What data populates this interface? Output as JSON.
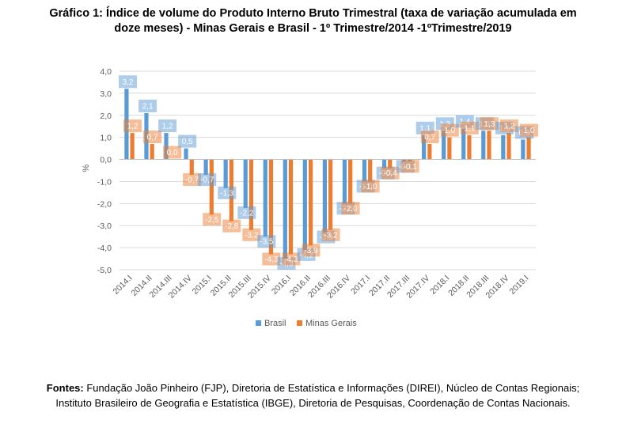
{
  "title": {
    "line1": "Gráfico 1: Índice de volume do Produto Interno Bruto Trimestral (taxa de variação acumulada em",
    "line2": "doze meses) - Minas Gerais e Brasil - 1º Trimestre/2014 -1ºTrimestre/2019"
  },
  "sources": {
    "label": "Fontes:",
    "line1_rest": " Fundação João Pinheiro (FJP), Diretoria de Estatística e Informações (DIREI), Núcleo de Contas Regionais;",
    "line2": "Instituto Brasileiro de Geografia e Estatística (IBGE), Diretoria de Pesquisas, Coordenação de Contas Nacionais."
  },
  "colors": {
    "brasil": "#5b9bd5",
    "minas": "#ed7d31",
    "grid": "#d9d9d9",
    "axis": "#595959"
  },
  "chart_data": {
    "type": "bar",
    "ylabel": "%",
    "ylim": [
      -5.0,
      4.0
    ],
    "yticks": [
      "4,0",
      "3,0",
      "2,0",
      "1,0",
      "0,0",
      "-1,0",
      "-2,0",
      "-3,0",
      "-4,0",
      "-5,0"
    ],
    "grid": true,
    "legend": "bottom",
    "categories": [
      "2014.I",
      "2014.II",
      "2014.III",
      "2014.IV",
      "2015.I",
      "2015.II",
      "2015.III",
      "2015.IV",
      "2016.I",
      "2016.II",
      "2016.III",
      "2016.IV",
      "2017.I",
      "2017.II",
      "2017.III",
      "2017.IV",
      "2018.I",
      "2018.II",
      "2018.III",
      "2018.IV",
      "2019.I"
    ],
    "series": [
      {
        "name": "Brasil",
        "values": [
          3.2,
          2.1,
          1.2,
          0.5,
          -0.7,
          -1.3,
          -2.2,
          -3.5,
          -4.5,
          -4.1,
          -3.3,
          -2.0,
          -1.0,
          -0.4,
          -0.1,
          1.1,
          1.3,
          1.4,
          1.3,
          1.1,
          0.9
        ],
        "labels": [
          "3,2",
          "2,1",
          "1,2",
          "0,5",
          "-0,7",
          "-1,3",
          "-2,2",
          "-3,5",
          "-4,5",
          "-4,1",
          "-3,3",
          "-2,0",
          "-1,0",
          "-0,4",
          "-0,1",
          "1,1",
          "1,3",
          "1,4",
          "1,3",
          "1,1",
          "0,9"
        ]
      },
      {
        "name": "Minas Gerais",
        "values": [
          1.2,
          0.7,
          0.0,
          -0.7,
          -2.5,
          -2.8,
          -3.2,
          -4.3,
          -4.3,
          -3.9,
          -3.2,
          -2.0,
          -1.0,
          -0.4,
          -0.1,
          0.7,
          1.0,
          1.1,
          1.3,
          1.2,
          1.0
        ],
        "labels": [
          "1,2",
          "0,7",
          "0,0",
          "-0,7",
          "-2,5",
          "-2,8",
          "-3,2",
          "-4,3",
          "-4,3",
          "-3,9",
          "-3,2",
          "-2,0",
          "-1,0",
          "-0,4",
          "-0,1",
          "0,7",
          "1,0",
          "1,1",
          "1,3",
          "1,2",
          "1,0"
        ]
      }
    ]
  }
}
